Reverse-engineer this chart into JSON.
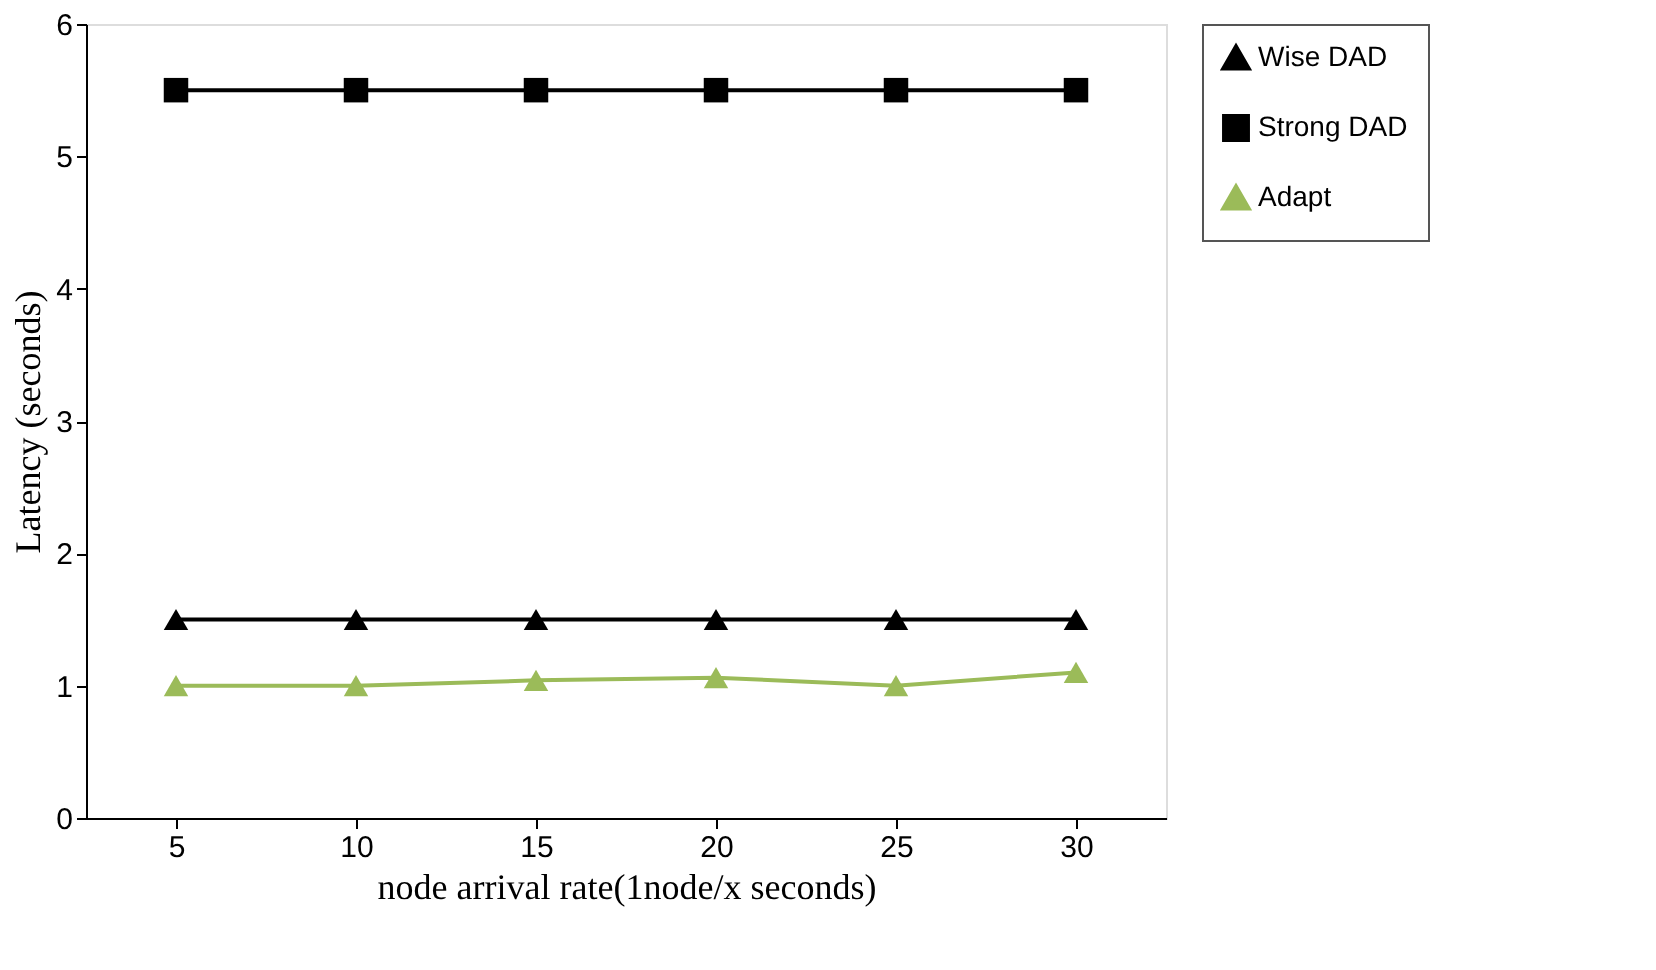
{
  "chart_data": {
    "type": "line",
    "xlabel": "node arrival rate(1node/x seconds)",
    "ylabel": "Latency (seconds)",
    "categories": [
      "5",
      "10",
      "15",
      "20",
      "25",
      "30"
    ],
    "series": [
      {
        "name": "Wise DAD",
        "color": "#000000",
        "marker": "triangle",
        "values": [
          1.5,
          1.5,
          1.5,
          1.5,
          1.5,
          1.5
        ]
      },
      {
        "name": "Strong DAD",
        "color": "#000000",
        "marker": "square",
        "values": [
          5.5,
          5.5,
          5.5,
          5.5,
          5.5,
          5.5
        ]
      },
      {
        "name": "Adapt",
        "color": "#9bbb59",
        "marker": "triangle",
        "values": [
          1.0,
          1.0,
          1.04,
          1.06,
          1.0,
          1.1
        ]
      }
    ],
    "ylim": [
      0,
      6
    ],
    "yticks": [
      0,
      1,
      2,
      3,
      4,
      5,
      6
    ],
    "grid": false,
    "legend": "right"
  }
}
